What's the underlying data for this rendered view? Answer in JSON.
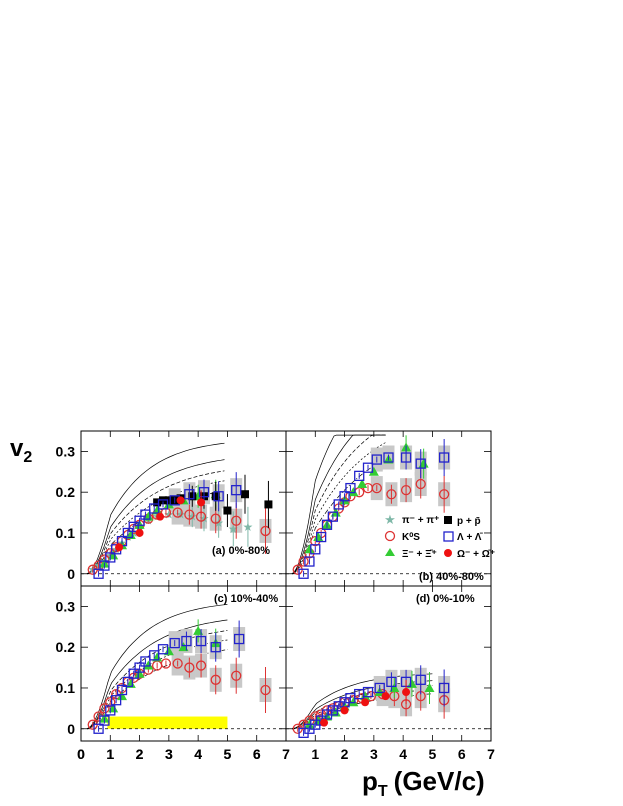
{
  "figure": {
    "ylabel": "v",
    "ylabel_sub": "2",
    "xlabel": "p",
    "xlabel_sub": "T",
    "xlabel_unit": "(GeV/c)"
  },
  "colors": {
    "pion": "#7fb8a8",
    "kaon": "#dd3333",
    "xi": "#33cc33",
    "proton": "#000000",
    "lambda": "#2222cc",
    "omega": "#ee1111",
    "band": "#ffff00",
    "sysbox": "#c8c8c8"
  },
  "legend": [
    {
      "key": "pion",
      "label": "π⁻ + π⁺",
      "marker": "star"
    },
    {
      "key": "kaon",
      "label": "K⁰S",
      "marker": "open-circle"
    },
    {
      "key": "xi",
      "label": "Ξ⁻ + Ξ̄⁺",
      "marker": "triangle"
    },
    {
      "key": "proton",
      "label": "p + p̄",
      "marker": "square"
    },
    {
      "key": "lambda",
      "label": "Λ + Λ̄",
      "marker": "open-square"
    },
    {
      "key": "omega",
      "label": "Ω⁻ + Ω̄⁺",
      "marker": "circle"
    }
  ],
  "chart_data": [
    {
      "type": "scatter",
      "panel": "(a) 0%-80%",
      "xlim": [
        0,
        7
      ],
      "ylim": [
        -0.03,
        0.35
      ],
      "xticks": [
        "0",
        "1",
        "2",
        "3",
        "4",
        "5",
        "6",
        "7"
      ],
      "yticks": [
        "0",
        "0.1",
        "0.2",
        "0.3"
      ],
      "series": [
        {
          "key": "pion",
          "x": [
            0.4,
            0.6,
            0.8,
            1.0,
            1.2,
            1.4,
            1.6,
            1.8,
            2.0,
            2.3,
            2.6,
            3.0,
            3.4,
            3.8,
            4.2,
            4.7,
            5.2,
            5.7
          ],
          "y": [
            0.01,
            0.02,
            0.03,
            0.045,
            0.06,
            0.075,
            0.09,
            0.1,
            0.115,
            0.13,
            0.14,
            0.145,
            0.145,
            0.14,
            0.135,
            0.125,
            0.11,
            0.115
          ]
        },
        {
          "key": "kaon",
          "x": [
            0.4,
            0.6,
            0.8,
            1.0,
            1.2,
            1.4,
            1.6,
            1.8,
            2.0,
            2.3,
            2.6,
            2.9,
            3.3,
            3.7,
            4.1,
            4.6,
            5.3,
            6.3
          ],
          "y": [
            0.01,
            0.02,
            0.035,
            0.05,
            0.065,
            0.08,
            0.095,
            0.11,
            0.12,
            0.135,
            0.145,
            0.15,
            0.15,
            0.145,
            0.14,
            0.135,
            0.13,
            0.105
          ]
        },
        {
          "key": "xi",
          "x": [
            0.8,
            1.1,
            1.4,
            1.7,
            2.0,
            2.3,
            2.6,
            3.0,
            3.5,
            4.0,
            4.6
          ],
          "y": [
            0.025,
            0.045,
            0.07,
            0.095,
            0.12,
            0.14,
            0.155,
            0.17,
            0.18,
            0.19,
            0.195
          ]
        },
        {
          "key": "proton",
          "x": [
            2.6,
            2.8,
            3.0,
            3.2,
            3.4,
            3.8,
            4.2,
            4.6,
            5.0,
            5.6,
            6.4
          ],
          "y": [
            0.175,
            0.18,
            0.18,
            0.18,
            0.185,
            0.19,
            0.19,
            0.19,
            0.155,
            0.195,
            0.17
          ]
        },
        {
          "key": "lambda",
          "x": [
            0.6,
            0.8,
            1.0,
            1.2,
            1.4,
            1.6,
            1.8,
            2.0,
            2.2,
            2.5,
            2.8,
            3.2,
            3.7,
            4.2,
            4.7,
            5.3
          ],
          "y": [
            0.0,
            0.02,
            0.04,
            0.06,
            0.08,
            0.1,
            0.115,
            0.13,
            0.145,
            0.16,
            0.17,
            0.18,
            0.195,
            0.2,
            0.19,
            0.205
          ]
        },
        {
          "key": "omega",
          "x": [
            1.3,
            2.0,
            2.7,
            3.4,
            4.1
          ],
          "y": [
            0.065,
            0.1,
            0.14,
            0.18,
            0.175
          ]
        }
      ]
    },
    {
      "type": "scatter",
      "panel": "(b) 40%-80%",
      "xlim": [
        0,
        7
      ],
      "ylim": [
        -0.03,
        0.35
      ],
      "xticks": [],
      "yticks": [],
      "series": [
        {
          "key": "kaon",
          "x": [
            0.4,
            0.6,
            0.8,
            1.0,
            1.2,
            1.4,
            1.6,
            1.8,
            2.0,
            2.2,
            2.5,
            2.8,
            3.1,
            3.6,
            4.1,
            4.6,
            5.4
          ],
          "y": [
            0.01,
            0.03,
            0.05,
            0.08,
            0.1,
            0.12,
            0.14,
            0.16,
            0.175,
            0.19,
            0.2,
            0.21,
            0.21,
            0.195,
            0.205,
            0.22,
            0.195
          ]
        },
        {
          "key": "xi",
          "x": [
            0.8,
            1.1,
            1.4,
            1.7,
            2.0,
            2.3,
            2.6,
            3.0,
            3.5,
            4.1,
            4.7
          ],
          "y": [
            0.06,
            0.09,
            0.12,
            0.15,
            0.18,
            0.2,
            0.22,
            0.25,
            0.28,
            0.31,
            0.27
          ]
        },
        {
          "key": "lambda",
          "x": [
            0.6,
            0.8,
            1.0,
            1.2,
            1.4,
            1.6,
            1.8,
            2.0,
            2.2,
            2.5,
            2.8,
            3.1,
            3.5,
            4.1,
            4.6,
            5.4
          ],
          "y": [
            0.0,
            0.03,
            0.06,
            0.09,
            0.12,
            0.14,
            0.17,
            0.19,
            0.21,
            0.24,
            0.26,
            0.28,
            0.285,
            0.285,
            0.27,
            0.285
          ]
        }
      ]
    },
    {
      "type": "scatter",
      "panel": "(c) 10%-40%",
      "xlim": [
        0,
        7
      ],
      "ylim": [
        -0.03,
        0.35
      ],
      "xticks": [
        "0",
        "1",
        "2",
        "3",
        "4",
        "5",
        "6",
        "7"
      ],
      "yticks": [
        "0",
        "0.1",
        "0.2",
        "0.3"
      ],
      "band": {
        "x": [
          0.9,
          5.0
        ],
        "y_low": 0.0,
        "y_high": 0.03
      },
      "series": [
        {
          "key": "kaon",
          "x": [
            0.4,
            0.6,
            0.8,
            1.0,
            1.2,
            1.4,
            1.6,
            1.8,
            2.0,
            2.3,
            2.6,
            2.9,
            3.3,
            3.7,
            4.1,
            4.6,
            5.3,
            6.3
          ],
          "y": [
            0.01,
            0.03,
            0.05,
            0.065,
            0.085,
            0.1,
            0.115,
            0.125,
            0.135,
            0.145,
            0.155,
            0.16,
            0.16,
            0.15,
            0.155,
            0.12,
            0.13,
            0.095
          ]
        },
        {
          "key": "xi",
          "x": [
            0.8,
            1.1,
            1.4,
            1.7,
            2.0,
            2.3,
            2.6,
            3.0,
            3.5,
            4.0,
            4.6
          ],
          "y": [
            0.025,
            0.05,
            0.08,
            0.11,
            0.135,
            0.155,
            0.175,
            0.19,
            0.2,
            0.24,
            0.21
          ]
        },
        {
          "key": "lambda",
          "x": [
            0.6,
            0.8,
            1.0,
            1.2,
            1.4,
            1.6,
            1.8,
            2.0,
            2.2,
            2.5,
            2.8,
            3.2,
            3.6,
            4.1,
            4.6,
            5.4
          ],
          "y": [
            0.0,
            0.02,
            0.045,
            0.07,
            0.095,
            0.115,
            0.135,
            0.15,
            0.165,
            0.18,
            0.195,
            0.21,
            0.215,
            0.215,
            0.2,
            0.22
          ]
        }
      ]
    },
    {
      "type": "scatter",
      "panel": "(d) 0%-10%",
      "xlim": [
        0,
        7
      ],
      "ylim": [
        -0.03,
        0.35
      ],
      "xticks": [
        "0",
        "1",
        "2",
        "3",
        "4",
        "5",
        "6",
        "7"
      ],
      "yticks": [],
      "series": [
        {
          "key": "kaon",
          "x": [
            0.4,
            0.6,
            0.8,
            1.0,
            1.2,
            1.4,
            1.6,
            1.8,
            2.0,
            2.3,
            2.6,
            2.9,
            3.3,
            3.7,
            4.1,
            4.6,
            5.4
          ],
          "y": [
            0.0,
            0.01,
            0.02,
            0.03,
            0.035,
            0.045,
            0.05,
            0.055,
            0.065,
            0.07,
            0.075,
            0.08,
            0.085,
            0.08,
            0.06,
            0.08,
            0.07
          ]
        },
        {
          "key": "xi",
          "x": [
            0.8,
            1.1,
            1.4,
            1.7,
            2.0,
            2.3,
            2.7,
            3.2,
            3.7,
            4.3,
            4.9
          ],
          "y": [
            0.01,
            0.02,
            0.03,
            0.04,
            0.055,
            0.065,
            0.08,
            0.09,
            0.1,
            0.11,
            0.1
          ]
        },
        {
          "key": "lambda",
          "x": [
            0.6,
            0.8,
            1.0,
            1.2,
            1.4,
            1.6,
            1.8,
            2.0,
            2.2,
            2.5,
            2.8,
            3.2,
            3.6,
            4.1,
            4.6,
            5.4
          ],
          "y": [
            -0.01,
            0.0,
            0.01,
            0.02,
            0.035,
            0.045,
            0.055,
            0.065,
            0.075,
            0.085,
            0.09,
            0.1,
            0.115,
            0.115,
            0.12,
            0.1
          ]
        },
        {
          "key": "omega",
          "x": [
            1.3,
            2.0,
            2.7,
            3.4,
            4.1
          ],
          "y": [
            0.015,
            0.045,
            0.065,
            0.08,
            0.09
          ]
        }
      ]
    }
  ]
}
